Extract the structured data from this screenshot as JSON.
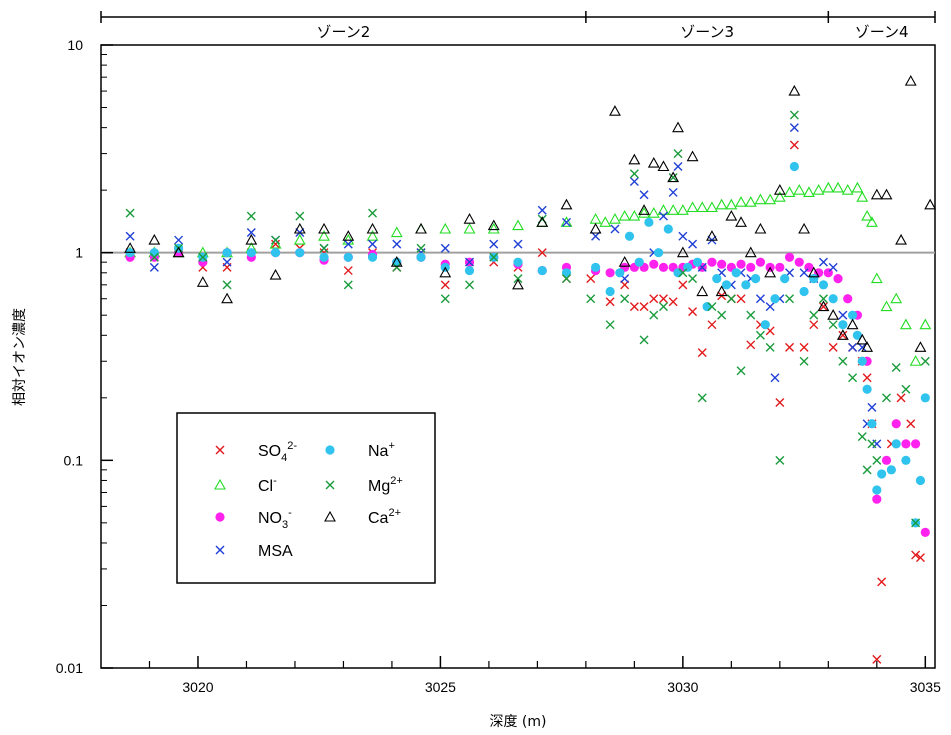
{
  "chart_data": {
    "type": "scatter",
    "title": "",
    "xlabel": "深度 (m)",
    "ylabel": "相対イオン濃度",
    "xlim": [
      3018,
      3035.2
    ],
    "ylim": [
      0.01,
      10
    ],
    "yscale": "log",
    "x_ticks": [
      3020,
      3025,
      3030,
      3035
    ],
    "x_ticks_minor": [
      3019,
      3021,
      3022,
      3023,
      3024,
      3026,
      3027,
      3028,
      3029,
      3031,
      3032,
      3033,
      3034
    ],
    "y_ticks": [
      0.01,
      0.1,
      1,
      10
    ],
    "y_tick_labels": [
      "0.01",
      "0.1",
      "1",
      "10"
    ],
    "reference_line": {
      "y": 1,
      "color": "#a0a0a0"
    },
    "zones": [
      {
        "label": "ゾーン2",
        "x_start": 3018,
        "x_end": 3028
      },
      {
        "label": "ゾーン3",
        "x_start": 3028,
        "x_end": 3033
      },
      {
        "label": "ゾーン4",
        "x_start": 3033,
        "x_end": 3035.2
      }
    ],
    "legend_position": "bottom-left",
    "series": [
      {
        "name": "SO4 2-",
        "label_main": "SO",
        "label_sub": "4",
        "label_sup": "2-",
        "marker": "x",
        "color": "#e31a1c",
        "x": [
          3018.6,
          3019.1,
          3019.6,
          3020.1,
          3020.6,
          3021.1,
          3021.6,
          3022.1,
          3022.6,
          3023.1,
          3023.6,
          3024.1,
          3024.6,
          3025.1,
          3025.6,
          3026.1,
          3026.6,
          3027.1,
          3027.6,
          3028.1,
          3028.5,
          3028.8,
          3029.0,
          3029.2,
          3029.4,
          3029.6,
          3029.8,
          3030.0,
          3030.2,
          3030.4,
          3030.6,
          3030.8,
          3031.0,
          3031.2,
          3031.4,
          3031.6,
          3031.8,
          3032.0,
          3032.2,
          3032.3,
          3032.5,
          3032.7,
          3032.9,
          3033.1,
          3033.3,
          3033.5,
          3033.7,
          3033.8,
          3033.9,
          3034.0,
          3034.1,
          3034.3,
          3034.5,
          3034.7,
          3034.8,
          3034.9
        ],
        "y": [
          1.0,
          0.95,
          1.0,
          0.85,
          0.85,
          1.0,
          1.1,
          1.05,
          1.0,
          0.82,
          1.0,
          0.85,
          1.0,
          0.7,
          0.85,
          0.9,
          0.85,
          1.0,
          0.75,
          0.75,
          0.58,
          0.7,
          0.55,
          0.55,
          0.6,
          0.6,
          0.58,
          0.7,
          0.52,
          0.33,
          0.45,
          0.62,
          0.6,
          0.6,
          0.36,
          0.45,
          0.42,
          0.19,
          0.35,
          3.3,
          0.35,
          0.45,
          0.55,
          0.35,
          0.4,
          0.35,
          0.3,
          0.25,
          0.15,
          0.011,
          0.026,
          0.12,
          0.2,
          0.15,
          0.035,
          0.034
        ]
      },
      {
        "name": "Cl-",
        "label_main": "Cl",
        "label_sub": "",
        "label_sup": "-",
        "marker": "triangle",
        "color": "#22dd22",
        "x": [
          3018.6,
          3019.1,
          3019.6,
          3020.1,
          3020.6,
          3021.1,
          3021.6,
          3022.1,
          3022.6,
          3023.1,
          3023.6,
          3024.1,
          3024.6,
          3025.1,
          3025.6,
          3026.1,
          3026.6,
          3027.1,
          3027.6,
          3028.2,
          3028.4,
          3028.6,
          3028.8,
          3029.0,
          3029.2,
          3029.4,
          3029.6,
          3029.8,
          3030.0,
          3030.2,
          3030.4,
          3030.6,
          3030.8,
          3031.0,
          3031.2,
          3031.4,
          3031.6,
          3031.8,
          3032.0,
          3032.2,
          3032.4,
          3032.6,
          3032.8,
          3033.0,
          3033.2,
          3033.4,
          3033.6,
          3033.7,
          3033.8,
          3033.9,
          3034.0,
          3034.2,
          3034.4,
          3034.6,
          3034.8,
          3035.0
        ],
        "y": [
          1.0,
          1.0,
          1.0,
          1.0,
          1.0,
          1.05,
          1.1,
          1.15,
          1.2,
          1.15,
          1.2,
          1.25,
          1.3,
          1.3,
          1.3,
          1.3,
          1.35,
          1.4,
          1.4,
          1.45,
          1.4,
          1.45,
          1.5,
          1.5,
          1.55,
          1.55,
          1.6,
          1.6,
          1.6,
          1.65,
          1.65,
          1.65,
          1.7,
          1.7,
          1.75,
          1.75,
          1.8,
          1.8,
          1.85,
          1.95,
          2.0,
          1.95,
          2.0,
          2.05,
          2.05,
          2.0,
          2.05,
          1.85,
          1.5,
          1.4,
          0.75,
          0.55,
          0.6,
          0.45,
          0.3,
          0.45
        ]
      },
      {
        "name": "NO3 -",
        "label_main": "NO",
        "label_sub": "3",
        "label_sup": "-",
        "marker": "circle",
        "color": "#ff22ee",
        "x": [
          3018.6,
          3019.1,
          3019.6,
          3020.1,
          3020.6,
          3021.1,
          3021.6,
          3022.1,
          3022.6,
          3023.1,
          3023.6,
          3024.1,
          3024.6,
          3025.1,
          3025.6,
          3026.1,
          3026.6,
          3027.1,
          3027.6,
          3028.2,
          3028.5,
          3028.8,
          3029.0,
          3029.2,
          3029.4,
          3029.6,
          3029.8,
          3030.0,
          3030.2,
          3030.4,
          3030.6,
          3030.8,
          3031.0,
          3031.2,
          3031.4,
          3031.6,
          3031.8,
          3032.0,
          3032.2,
          3032.4,
          3032.6,
          3032.8,
          3033.0,
          3033.2,
          3033.4,
          3033.6,
          3033.8,
          3034.0,
          3034.2,
          3034.4,
          3034.6,
          3034.8,
          3035.0
        ],
        "y": [
          0.95,
          0.95,
          1.0,
          0.9,
          1.0,
          0.95,
          1.0,
          1.0,
          0.92,
          0.95,
          0.98,
          0.9,
          0.95,
          0.88,
          0.9,
          0.95,
          0.88,
          0.82,
          0.85,
          0.82,
          0.8,
          0.85,
          0.85,
          0.85,
          0.88,
          0.85,
          0.85,
          0.85,
          0.88,
          0.85,
          0.9,
          0.88,
          0.85,
          0.88,
          0.85,
          0.9,
          0.85,
          0.85,
          0.95,
          0.9,
          0.85,
          0.8,
          0.8,
          0.75,
          0.6,
          0.5,
          0.3,
          0.065,
          0.1,
          0.15,
          0.12,
          0.12,
          0.045
        ]
      },
      {
        "name": "MSA",
        "label_main": "MSA",
        "label_sub": "",
        "label_sup": "",
        "marker": "x",
        "color": "#1f3fd6",
        "x": [
          3018.6,
          3019.1,
          3019.6,
          3020.1,
          3020.6,
          3021.1,
          3021.6,
          3022.1,
          3022.6,
          3023.1,
          3023.6,
          3024.1,
          3024.6,
          3025.1,
          3025.6,
          3026.1,
          3026.6,
          3027.1,
          3027.6,
          3028.2,
          3028.6,
          3028.8,
          3029.0,
          3029.2,
          3029.4,
          3029.6,
          3029.8,
          3029.9,
          3030.0,
          3030.2,
          3030.4,
          3030.6,
          3030.8,
          3031.0,
          3031.2,
          3031.4,
          3031.6,
          3031.8,
          3031.9,
          3032.0,
          3032.2,
          3032.3,
          3032.5,
          3032.7,
          3032.9,
          3033.1,
          3033.3,
          3033.5,
          3033.7,
          3033.8,
          3033.9,
          3034.0
        ],
        "y": [
          1.2,
          0.85,
          1.15,
          0.95,
          0.9,
          1.25,
          1.15,
          1.25,
          1.05,
          1.1,
          1.1,
          1.1,
          1.0,
          1.05,
          0.9,
          1.1,
          1.1,
          1.6,
          1.4,
          1.2,
          1.3,
          0.75,
          2.2,
          1.9,
          1.0,
          1.5,
          1.95,
          2.6,
          1.2,
          1.1,
          0.85,
          1.15,
          0.8,
          0.7,
          0.8,
          0.75,
          0.6,
          0.55,
          0.25,
          0.6,
          0.8,
          4.0,
          0.8,
          0.75,
          0.9,
          0.85,
          0.5,
          0.35,
          0.35,
          0.15,
          0.18,
          0.12
        ]
      },
      {
        "name": "Na+",
        "label_main": "Na",
        "label_sub": "",
        "label_sup": "+",
        "marker": "circle",
        "color": "#2fc3ee",
        "x": [
          3018.6,
          3019.1,
          3019.6,
          3020.1,
          3020.6,
          3021.1,
          3021.6,
          3022.1,
          3022.6,
          3023.1,
          3023.6,
          3024.1,
          3024.6,
          3025.1,
          3025.6,
          3026.1,
          3026.6,
          3027.1,
          3027.6,
          3028.2,
          3028.5,
          3028.7,
          3028.9,
          3029.1,
          3029.3,
          3029.5,
          3029.7,
          3029.9,
          3030.1,
          3030.3,
          3030.5,
          3030.7,
          3030.9,
          3031.1,
          3031.3,
          3031.5,
          3031.7,
          3031.9,
          3032.1,
          3032.3,
          3032.5,
          3032.7,
          3032.9,
          3033.1,
          3033.3,
          3033.5,
          3033.6,
          3033.7,
          3033.8,
          3033.9,
          3034.0,
          3034.1,
          3034.3,
          3034.4,
          3034.6,
          3034.8,
          3034.9,
          3035.0
        ],
        "y": [
          1.0,
          1.0,
          1.05,
          0.95,
          1.0,
          1.0,
          1.0,
          1.0,
          0.95,
          0.95,
          0.95,
          0.9,
          0.95,
          0.85,
          0.82,
          0.95,
          0.9,
          0.82,
          0.8,
          0.85,
          0.65,
          0.8,
          1.2,
          0.9,
          1.4,
          1.0,
          1.3,
          0.8,
          0.85,
          0.9,
          0.55,
          0.75,
          0.7,
          0.8,
          0.7,
          0.75,
          0.45,
          0.6,
          0.75,
          2.6,
          0.65,
          0.75,
          0.7,
          0.6,
          0.45,
          0.5,
          0.4,
          0.3,
          0.22,
          0.15,
          0.072,
          0.086,
          0.09,
          0.12,
          0.1,
          0.05,
          0.08,
          0.2
        ]
      },
      {
        "name": "Mg2+",
        "label_main": "Mg",
        "label_sub": "",
        "label_sup": "2+",
        "marker": "x",
        "color": "#1a9c3c",
        "x": [
          3018.6,
          3019.1,
          3019.6,
          3020.1,
          3020.6,
          3021.1,
          3021.6,
          3022.1,
          3022.6,
          3023.1,
          3023.6,
          3024.1,
          3024.6,
          3025.1,
          3025.6,
          3026.1,
          3026.6,
          3027.1,
          3027.6,
          3028.1,
          3028.5,
          3028.8,
          3029.0,
          3029.2,
          3029.4,
          3029.6,
          3029.8,
          3029.9,
          3030.0,
          3030.2,
          3030.4,
          3030.6,
          3030.8,
          3031.0,
          3031.2,
          3031.4,
          3031.6,
          3031.8,
          3032.0,
          3032.2,
          3032.3,
          3032.5,
          3032.7,
          3032.9,
          3033.1,
          3033.3,
          3033.5,
          3033.7,
          3033.8,
          3033.9,
          3034.0,
          3034.2,
          3034.4,
          3034.6,
          3034.8,
          3035.0
        ],
        "y": [
          1.55,
          0.95,
          1.05,
          0.95,
          0.7,
          1.5,
          1.15,
          1.5,
          1.05,
          0.7,
          1.55,
          0.85,
          1.05,
          0.6,
          0.7,
          0.95,
          0.75,
          1.45,
          0.75,
          0.6,
          0.45,
          0.6,
          2.4,
          0.38,
          0.5,
          0.55,
          2.3,
          3.0,
          0.8,
          0.75,
          0.2,
          0.55,
          0.5,
          0.6,
          0.27,
          0.5,
          0.4,
          0.35,
          0.1,
          0.6,
          4.6,
          0.3,
          0.5,
          0.6,
          0.45,
          0.3,
          0.25,
          0.13,
          0.09,
          0.12,
          0.1,
          0.2,
          0.28,
          0.22,
          0.05,
          0.3
        ]
      },
      {
        "name": "Ca2+",
        "label_main": "Ca",
        "label_sub": "",
        "label_sup": "2+",
        "marker": "triangle_open",
        "color": "#000000",
        "x": [
          3018.6,
          3019.1,
          3019.6,
          3020.1,
          3020.6,
          3021.1,
          3021.6,
          3022.1,
          3022.6,
          3023.1,
          3023.6,
          3024.1,
          3024.6,
          3025.1,
          3025.6,
          3026.1,
          3026.6,
          3027.1,
          3027.6,
          3028.2,
          3028.6,
          3028.8,
          3029.0,
          3029.2,
          3029.4,
          3029.6,
          3029.8,
          3029.9,
          3030.0,
          3030.2,
          3030.4,
          3030.6,
          3030.8,
          3031.0,
          3031.2,
          3031.4,
          3031.6,
          3031.8,
          3032.0,
          3032.3,
          3032.5,
          3032.7,
          3032.9,
          3033.1,
          3033.3,
          3033.5,
          3033.7,
          3033.8,
          3034.0,
          3034.2,
          3034.5,
          3034.7,
          3034.9,
          3035.1
        ],
        "y": [
          1.05,
          1.15,
          1.0,
          0.72,
          0.6,
          1.15,
          0.78,
          1.3,
          1.3,
          1.2,
          1.3,
          0.9,
          1.3,
          0.8,
          1.45,
          1.35,
          0.7,
          1.4,
          1.7,
          1.3,
          4.8,
          0.9,
          2.8,
          1.6,
          2.7,
          2.6,
          2.3,
          4.0,
          1.0,
          2.9,
          0.65,
          1.2,
          0.65,
          1.5,
          1.4,
          1.0,
          1.3,
          0.8,
          2.0,
          6.0,
          1.3,
          0.8,
          0.55,
          0.5,
          0.4,
          0.45,
          0.38,
          0.35,
          1.9,
          1.9,
          1.15,
          6.7,
          0.35,
          1.7
        ]
      }
    ]
  }
}
